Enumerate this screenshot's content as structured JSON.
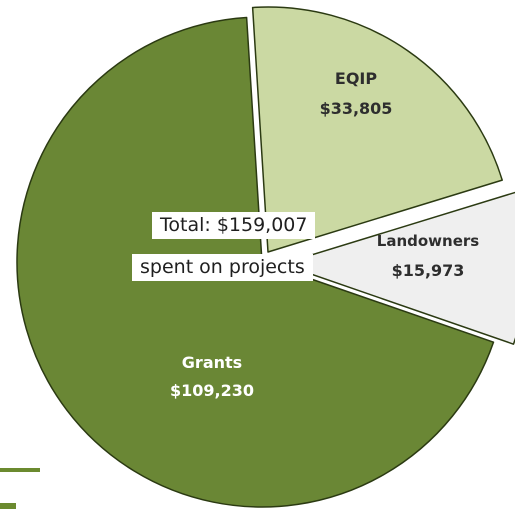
{
  "chart_data": {
    "type": "pie",
    "title": "",
    "total_label_line1": "Total: $159,007",
    "total_label_line2": "spent on projects",
    "slices": [
      {
        "name": "EQIP",
        "value": 33805,
        "value_label": "$33,805",
        "color": "#cbd9a3",
        "exploded": true,
        "label_color": "#2e2e2e"
      },
      {
        "name": "Landowners",
        "value": 15973,
        "value_label": "$15,973",
        "color": "#efefef",
        "exploded": true,
        "label_color": "#2e2e2e"
      },
      {
        "name": "Grants",
        "value": 109230,
        "value_label": "$109,230",
        "color": "#6a8735",
        "exploded": false,
        "label_color": "#ffffff"
      }
    ],
    "stroke_color": "#2b3a12",
    "decoration_color": "#6b8a2f"
  }
}
